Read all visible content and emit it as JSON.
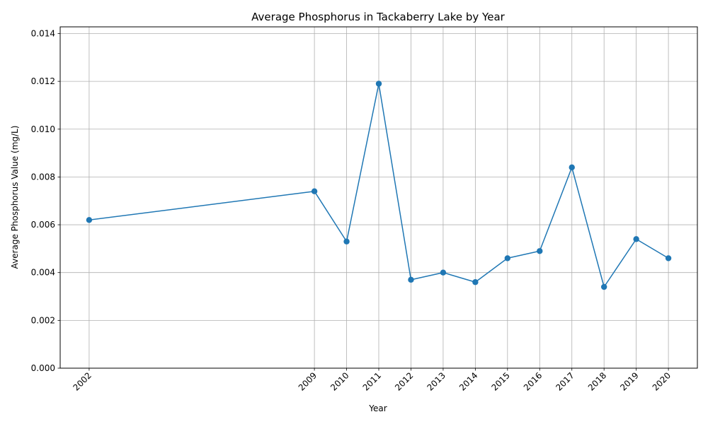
{
  "chart_data": {
    "type": "line",
    "title": "Average Phosphorus in Tackaberry Lake by Year",
    "xlabel": "Year",
    "ylabel": "Average Phosphorus Value (mg/L)",
    "x": [
      2002,
      2009,
      2010,
      2011,
      2012,
      2013,
      2014,
      2015,
      2016,
      2017,
      2018,
      2019,
      2020
    ],
    "x_tick_labels": [
      "2002",
      "2009",
      "2010",
      "2011",
      "2012",
      "2013",
      "2014",
      "2015",
      "2016",
      "2017",
      "2018",
      "2019",
      "2020"
    ],
    "series": [
      {
        "values": [
          0.0062,
          0.0074,
          0.0053,
          0.0119,
          0.0037,
          0.004,
          0.0036,
          0.0046,
          0.0049,
          0.0084,
          0.0034,
          0.0054,
          0.0046
        ],
        "color": "#1f77b4",
        "marker": "circle"
      }
    ],
    "y_ticks": [
      0,
      0.002,
      0.004,
      0.006,
      0.008,
      0.01,
      0.012,
      0.014
    ],
    "y_tick_labels": [
      "0.000",
      "0.002",
      "0.004",
      "0.006",
      "0.008",
      "0.010",
      "0.012",
      "0.014"
    ],
    "ylim": [
      0,
      0.01428
    ],
    "xlim": [
      2001.1,
      2020.9
    ],
    "grid": true,
    "legend": "none"
  }
}
